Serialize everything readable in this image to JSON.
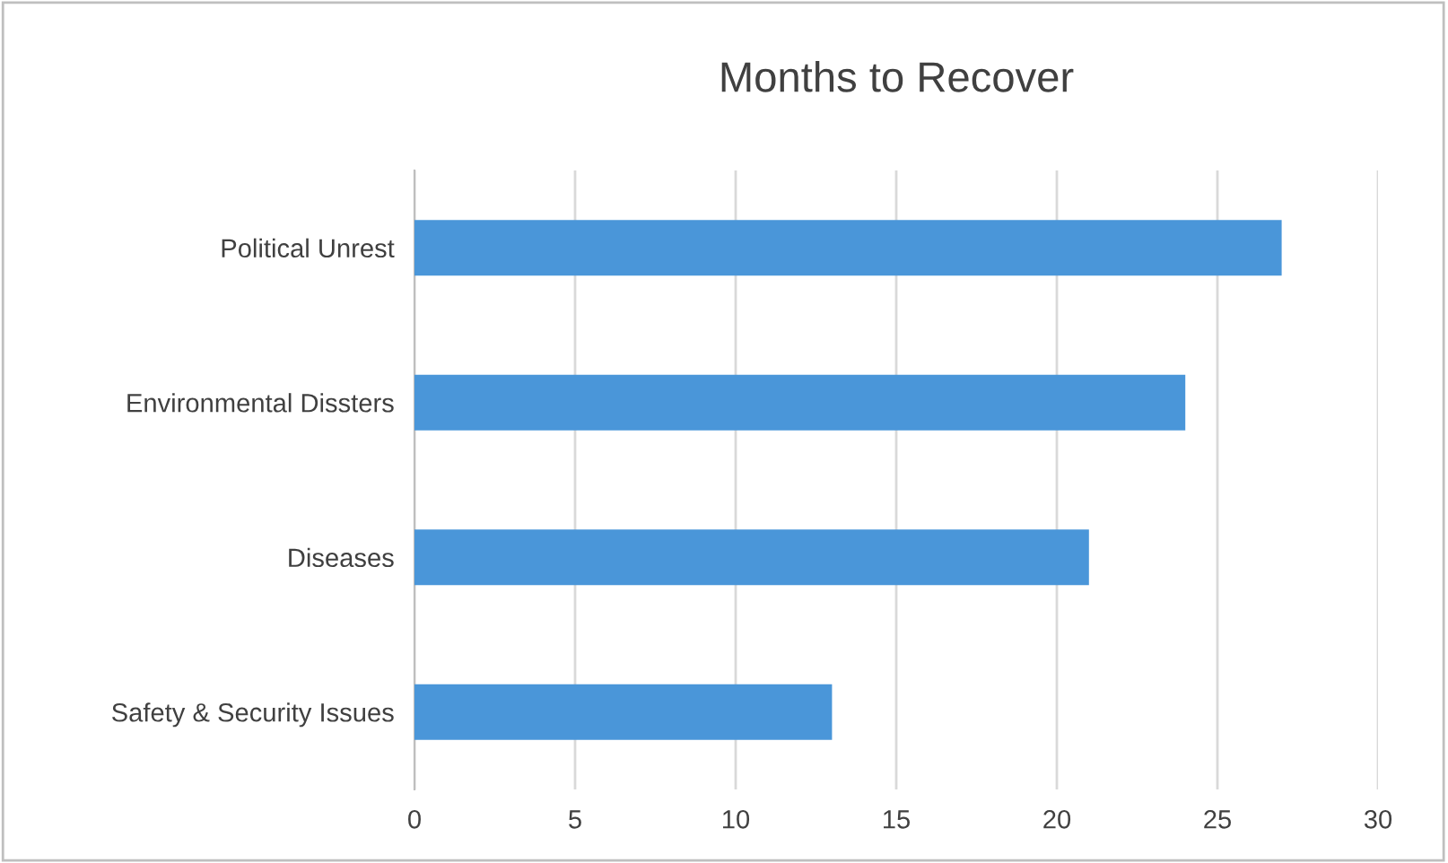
{
  "chart_data": {
    "type": "bar",
    "orientation": "horizontal",
    "title": "Months to Recover",
    "categories": [
      "Political Unrest",
      "Environmental Dissters",
      "Diseases",
      "Safety & Security Issues"
    ],
    "values": [
      27,
      24,
      21,
      13
    ],
    "color": "#4a96d9",
    "xlim": [
      0,
      30
    ],
    "xticks": [
      0,
      5,
      10,
      15,
      20,
      25,
      30
    ],
    "grid": "x",
    "legend": false
  }
}
